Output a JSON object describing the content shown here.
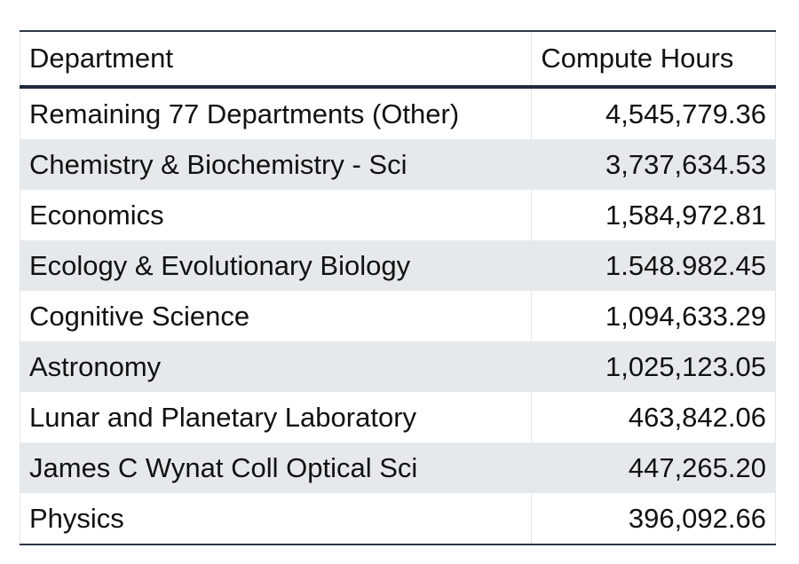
{
  "table": {
    "headers": {
      "department": "Department",
      "compute_hours": "Compute Hours"
    },
    "rows": [
      {
        "department": "Remaining 77 Departments (Other)",
        "compute_hours": "4,545,779.36"
      },
      {
        "department": "Chemistry & Biochemistry - Sci",
        "compute_hours": "3,737,634.53"
      },
      {
        "department": "Economics",
        "compute_hours": "1,584,972.81"
      },
      {
        "department": "Ecology & Evolutionary Biology",
        "compute_hours": "1.548.982.45"
      },
      {
        "department": "Cognitive Science",
        "compute_hours": "1,094,633.29"
      },
      {
        "department": "Astronomy",
        "compute_hours": "1,025,123.05"
      },
      {
        "department": "Lunar and Planetary Laboratory",
        "compute_hours": "463,842.06"
      },
      {
        "department": "James C Wynat Coll Optical Sci",
        "compute_hours": "447,265.20"
      },
      {
        "department": "Physics",
        "compute_hours": "396,092.66"
      }
    ]
  },
  "colors": {
    "header_rule": "#1f2a3d",
    "stripe": "#e6e9ec",
    "cell_border": "#e3e6ea",
    "text": "#111111"
  }
}
